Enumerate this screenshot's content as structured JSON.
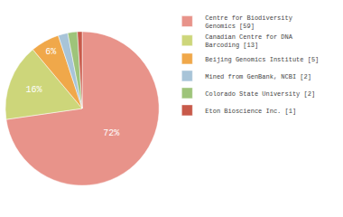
{
  "chart_data": {
    "type": "pie",
    "categories": [
      "Centre for Biodiversity\nGenomics [59]",
      "Canadian Centre for DNA\nBarcoding [13]",
      "Beijing Genomics Institute [5]",
      "Mined from GenBank, NCBI [2]",
      "Colorado State University [2]",
      "Eton Bioscience Inc. [1]"
    ],
    "values": [
      72,
      16,
      6,
      2,
      2,
      1
    ],
    "value_labels": [
      "72%",
      "16%",
      "6%",
      null,
      null,
      null
    ],
    "data_labels": true,
    "colors": [
      "#e8938a",
      "#cdd67a",
      "#f0a84a",
      "#a8c4d8",
      "#9ec47a",
      "#c85a4a"
    ],
    "legend": "right"
  }
}
